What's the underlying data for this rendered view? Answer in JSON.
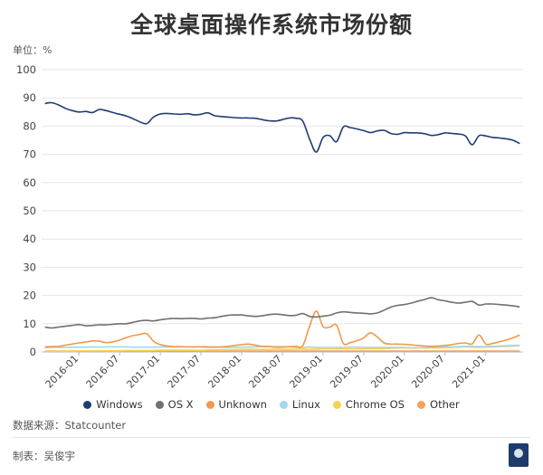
{
  "title": "全球桌面操作系统市场份额",
  "unit_label": "单位：%",
  "source": "数据来源：Statcounter",
  "author": "制表：吴俊宇",
  "colors": {
    "Windows": "#1f3c73",
    "OS X": "#707070",
    "Unknown": "#f2994a",
    "Linux": "#9fd7ee",
    "Chrome OS": "#f5d34a",
    "Other": "#f5a15a"
  },
  "chart_data": {
    "type": "line",
    "ylim": [
      0,
      100
    ],
    "yticks": [
      0,
      10,
      20,
      30,
      40,
      50,
      60,
      70,
      80,
      90,
      100
    ],
    "grid": "horizontal",
    "legend_position": "bottom",
    "x": [
      "2015-08",
      "2015-09",
      "2015-10",
      "2015-11",
      "2015-12",
      "2016-01",
      "2016-02",
      "2016-03",
      "2016-04",
      "2016-05",
      "2016-06",
      "2016-07",
      "2016-08",
      "2016-09",
      "2016-10",
      "2016-11",
      "2016-12",
      "2017-01",
      "2017-02",
      "2017-03",
      "2017-04",
      "2017-05",
      "2017-06",
      "2017-07",
      "2017-08",
      "2017-09",
      "2017-10",
      "2017-11",
      "2017-12",
      "2018-01",
      "2018-02",
      "2018-03",
      "2018-04",
      "2018-05",
      "2018-06",
      "2018-07",
      "2018-08",
      "2018-09",
      "2018-10",
      "2018-11",
      "2018-12",
      "2019-01",
      "2019-02",
      "2019-03",
      "2019-04",
      "2019-05",
      "2019-06",
      "2019-07",
      "2019-08",
      "2019-09",
      "2019-10",
      "2019-11",
      "2019-12",
      "2020-01",
      "2020-02",
      "2020-03",
      "2020-04",
      "2020-05",
      "2020-06",
      "2020-07",
      "2020-08",
      "2020-09",
      "2020-10",
      "2020-11",
      "2020-12",
      "2021-01",
      "2021-02",
      "2021-03",
      "2021-04",
      "2021-05",
      "2021-06"
    ],
    "xticks": [
      "2016-01",
      "2016-07",
      "2017-01",
      "2017-07",
      "2018-01",
      "2018-07",
      "2019-01",
      "2019-07",
      "2020-01",
      "2020-07",
      "2021-01"
    ],
    "series": [
      {
        "name": "Windows",
        "values": [
          88.0,
          88.3,
          87.5,
          86.3,
          85.5,
          85.0,
          85.2,
          84.8,
          85.9,
          85.5,
          84.8,
          84.2,
          83.6,
          82.6,
          81.5,
          80.9,
          83.2,
          84.3,
          84.5,
          84.3,
          84.2,
          84.4,
          84.0,
          84.2,
          84.7,
          83.7,
          83.4,
          83.2,
          83.0,
          82.9,
          82.9,
          82.8,
          82.3,
          81.9,
          81.8,
          82.3,
          82.9,
          82.8,
          81.8,
          75.5,
          70.8,
          76.0,
          76.6,
          74.5,
          79.7,
          79.5,
          79.0,
          78.4,
          77.7,
          78.3,
          78.5,
          77.4,
          77.1,
          77.7,
          77.6,
          77.6,
          77.3,
          76.7,
          77.0,
          77.6,
          77.4,
          77.2,
          76.5,
          73.4,
          76.6,
          76.5,
          76.0,
          75.8,
          75.5,
          75.0,
          73.8
        ]
      },
      {
        "name": "OS X",
        "values": [
          8.8,
          8.5,
          8.8,
          9.1,
          9.4,
          9.7,
          9.3,
          9.4,
          9.6,
          9.6,
          9.8,
          10.0,
          10.0,
          10.5,
          11.0,
          11.2,
          11.0,
          11.4,
          11.7,
          11.9,
          11.8,
          11.9,
          11.9,
          11.7,
          12.0,
          12.1,
          12.6,
          13.0,
          13.1,
          13.1,
          12.8,
          12.6,
          12.8,
          13.2,
          13.4,
          13.2,
          12.9,
          13.0,
          13.6,
          12.6,
          12.4,
          12.7,
          13.0,
          13.8,
          14.2,
          14.0,
          13.8,
          13.7,
          13.5,
          13.8,
          14.8,
          15.9,
          16.5,
          16.8,
          17.3,
          18.0,
          18.6,
          19.2,
          18.5,
          18.1,
          17.6,
          17.3,
          17.6,
          17.9,
          16.6,
          17.0,
          17.0,
          16.8,
          16.6,
          16.3,
          16.0
        ]
      },
      {
        "name": "Unknown",
        "values": [
          1.8,
          1.9,
          2.0,
          2.4,
          2.8,
          3.2,
          3.5,
          3.9,
          3.8,
          3.3,
          3.6,
          4.2,
          5.1,
          5.8,
          6.2,
          6.5,
          3.8,
          2.6,
          2.1,
          1.9,
          1.9,
          1.8,
          1.8,
          1.8,
          1.7,
          1.7,
          1.8,
          2.0,
          2.3,
          2.6,
          2.8,
          2.4,
          2.0,
          1.9,
          1.7,
          1.7,
          1.9,
          2.0,
          2.2,
          9.0,
          14.5,
          9.0,
          8.8,
          9.5,
          3.0,
          3.3,
          4.0,
          5.0,
          6.8,
          5.3,
          3.2,
          2.8,
          2.8,
          2.7,
          2.5,
          2.3,
          2.1,
          2.0,
          2.1,
          2.3,
          2.6,
          3.0,
          3.2,
          2.9,
          6.0,
          2.8,
          3.0,
          3.6,
          4.2,
          5.0,
          6.0
        ]
      },
      {
        "name": "Linux",
        "values": [
          1.5,
          1.6,
          1.6,
          1.6,
          1.7,
          1.7,
          1.7,
          1.8,
          1.7,
          1.8,
          1.8,
          1.8,
          1.8,
          1.7,
          1.7,
          1.7,
          1.7,
          1.7,
          1.8,
          1.8,
          1.8,
          1.8,
          1.8,
          1.9,
          1.9,
          1.8,
          1.7,
          1.6,
          1.6,
          1.7,
          1.7,
          1.8,
          1.9,
          1.9,
          1.9,
          1.9,
          1.8,
          1.6,
          1.6,
          1.8,
          1.6,
          1.6,
          1.6,
          1.6,
          1.6,
          1.7,
          1.7,
          1.6,
          1.6,
          1.6,
          1.6,
          1.6,
          1.6,
          1.6,
          1.5,
          1.5,
          1.6,
          1.6,
          1.7,
          1.8,
          1.8,
          1.9,
          2.0,
          2.0,
          1.9,
          1.9,
          2.0,
          2.1,
          2.2,
          2.3,
          2.4
        ]
      },
      {
        "name": "Chrome OS",
        "values": [
          0.3,
          0.3,
          0.3,
          0.3,
          0.3,
          0.4,
          0.4,
          0.4,
          0.4,
          0.4,
          0.4,
          0.4,
          0.5,
          0.5,
          0.5,
          0.5,
          0.5,
          0.6,
          0.6,
          0.6,
          0.6,
          0.6,
          0.6,
          0.6,
          0.7,
          0.7,
          0.8,
          0.8,
          0.8,
          0.9,
          0.9,
          0.9,
          0.9,
          0.9,
          1.0,
          0.9,
          0.9,
          1.0,
          1.0,
          1.0,
          1.0,
          1.1,
          1.1,
          1.1,
          1.1,
          1.1,
          1.1,
          1.1,
          1.2,
          1.2,
          1.2,
          1.3,
          1.4,
          1.4,
          1.4,
          1.5,
          1.4,
          1.4,
          1.4,
          1.5,
          1.6,
          1.7,
          1.8,
          1.7,
          1.6,
          1.7,
          1.8,
          1.9,
          2.0,
          2.1,
          2.2
        ]
      },
      {
        "name": "Other",
        "values": [
          0.3,
          0.3,
          0.3,
          0.3,
          0.3,
          0.3,
          0.3,
          0.3,
          0.3,
          0.3,
          0.3,
          0.3,
          0.3,
          0.3,
          0.3,
          0.3,
          0.3,
          0.3,
          0.3,
          0.3,
          0.3,
          0.3,
          0.3,
          0.3,
          0.3,
          0.3,
          0.3,
          0.3,
          0.3,
          0.3,
          0.3,
          0.3,
          0.3,
          0.3,
          0.3,
          0.3,
          0.3,
          0.3,
          0.3,
          0.3,
          0.3,
          0.3,
          0.3,
          0.3,
          0.3,
          0.3,
          0.3,
          0.3,
          0.3,
          0.3,
          0.3,
          0.3,
          0.3,
          0.3,
          0.3,
          0.3,
          0.3,
          0.3,
          0.3,
          0.3,
          0.3,
          0.3,
          0.3,
          0.3,
          0.3,
          0.3,
          0.3,
          0.3,
          0.3,
          0.3,
          0.3
        ]
      }
    ]
  }
}
